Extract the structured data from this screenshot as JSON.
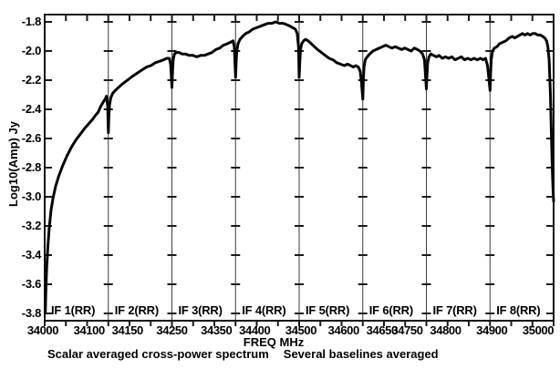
{
  "figure": {
    "background": "#ffffff",
    "frame_color": "#111111",
    "divider_color": "#3d3d3d",
    "tick_color": "#1a1a1a",
    "curve_color": "#050505"
  },
  "y_axis": {
    "title": "Log10(Amp) Jy",
    "tick_values": [
      -1.8,
      -2.0,
      -2.2,
      -2.4,
      -2.6,
      -2.8,
      -3.0,
      -3.2,
      -3.4,
      -3.6,
      -3.8
    ]
  },
  "x_axis": {
    "title": "FREQ MHz",
    "labels": [
      {
        "text": "34000",
        "edge": 0,
        "dx": -2
      },
      {
        "text": "34100",
        "edge": 1,
        "dx": -21
      },
      {
        "text": "34150",
        "edge": 1,
        "dx": 21
      },
      {
        "text": "34250",
        "edge": 2,
        "dx": 0
      },
      {
        "text": "34350",
        "edge": 3,
        "dx": -21
      },
      {
        "text": "34400",
        "edge": 3,
        "dx": 21
      },
      {
        "text": "34500",
        "edge": 4,
        "dx": 2
      },
      {
        "text": "34600",
        "edge": 5,
        "dx": -21
      },
      {
        "text": "34650",
        "edge": 5,
        "dx": 21
      },
      {
        "text": "34750",
        "edge": 6,
        "dx": -21
      },
      {
        "text": "34800",
        "edge": 6,
        "dx": 21
      },
      {
        "text": "34900",
        "edge": 7,
        "dx": 2
      },
      {
        "text": "35000",
        "edge": 8,
        "dx": -17
      }
    ]
  },
  "footer": {
    "left": "Scalar averaged cross-power spectrum",
    "right": "Several baselines averaged"
  },
  "chart_data": {
    "type": "line",
    "title": "Scalar averaged cross-power spectrum — Several baselines averaged",
    "xlabel": "FREQ MHz",
    "ylabel": "Log10(Amp) Jy",
    "ylim": [
      -3.85,
      -1.75
    ],
    "grid": false,
    "legend": "none",
    "description": "Cross-power spectrum amplitude vs frequency over 8 contiguous IF panels; sharp absorption-like dips at IF band edges.",
    "if_bands": [
      {
        "label": "IF 1(RR)",
        "f_start": 34000,
        "f_end": 34100,
        "points": [
          [
            34001,
            -3.79
          ],
          [
            34002,
            -3.62
          ],
          [
            34003,
            -3.5
          ],
          [
            34005,
            -3.34
          ],
          [
            34007,
            -3.22
          ],
          [
            34010,
            -3.09
          ],
          [
            34013,
            -3.01
          ],
          [
            34017,
            -2.93
          ],
          [
            34022,
            -2.86
          ],
          [
            34028,
            -2.79
          ],
          [
            34035,
            -2.72
          ],
          [
            34042,
            -2.66
          ],
          [
            34049,
            -2.61
          ],
          [
            34056,
            -2.57
          ],
          [
            34063,
            -2.53
          ],
          [
            34069,
            -2.5
          ],
          [
            34075,
            -2.47
          ],
          [
            34080,
            -2.44
          ],
          [
            34084,
            -2.42
          ],
          [
            34088,
            -2.38
          ],
          [
            34092,
            -2.35
          ],
          [
            34095,
            -2.33
          ],
          [
            34097,
            -2.31
          ],
          [
            34099,
            -2.38
          ],
          [
            34100,
            -2.56
          ]
        ]
      },
      {
        "label": "IF 2(RR)",
        "f_start": 34150,
        "f_end": 34250,
        "points": [
          [
            34151,
            -2.44
          ],
          [
            34152,
            -2.37
          ],
          [
            34154,
            -2.32
          ],
          [
            34157,
            -2.29
          ],
          [
            34161,
            -2.27
          ],
          [
            34166,
            -2.25
          ],
          [
            34171,
            -2.23
          ],
          [
            34177,
            -2.21
          ],
          [
            34183,
            -2.19
          ],
          [
            34189,
            -2.17
          ],
          [
            34196,
            -2.15
          ],
          [
            34203,
            -2.13
          ],
          [
            34210,
            -2.11
          ],
          [
            34217,
            -2.1
          ],
          [
            34224,
            -2.08
          ],
          [
            34231,
            -2.07
          ],
          [
            34237,
            -2.06
          ],
          [
            34242,
            -2.05
          ],
          [
            34246,
            -2.05
          ],
          [
            34248,
            -2.09
          ],
          [
            34250,
            -2.25
          ]
        ]
      },
      {
        "label": "IF 3(RR)",
        "f_start": 34250,
        "f_end": 34350,
        "points": [
          [
            34251,
            -2.14
          ],
          [
            34252,
            -2.06
          ],
          [
            34254,
            -2.02
          ],
          [
            34257,
            -2.01
          ],
          [
            34261,
            -2.01
          ],
          [
            34266,
            -2.02
          ],
          [
            34271,
            -2.02
          ],
          [
            34277,
            -2.03
          ],
          [
            34283,
            -2.03
          ],
          [
            34289,
            -2.04
          ],
          [
            34295,
            -2.03
          ],
          [
            34301,
            -2.03
          ],
          [
            34307,
            -2.02
          ],
          [
            34313,
            -2.01
          ],
          [
            34319,
            -1.99
          ],
          [
            34325,
            -1.98
          ],
          [
            34331,
            -1.96
          ],
          [
            34337,
            -1.95
          ],
          [
            34342,
            -1.94
          ],
          [
            34346,
            -1.93
          ],
          [
            34348,
            -1.97
          ],
          [
            34350,
            -2.18
          ]
        ]
      },
      {
        "label": "IF 4(RR)",
        "f_start": 34400,
        "f_end": 34500,
        "points": [
          [
            34401,
            -2.08
          ],
          [
            34402,
            -2.0
          ],
          [
            34404,
            -1.95
          ],
          [
            34407,
            -1.92
          ],
          [
            34411,
            -1.9
          ],
          [
            34416,
            -1.88
          ],
          [
            34421,
            -1.87
          ],
          [
            34427,
            -1.85
          ],
          [
            34433,
            -1.84
          ],
          [
            34439,
            -1.83
          ],
          [
            34445,
            -1.82
          ],
          [
            34451,
            -1.81
          ],
          [
            34457,
            -1.81
          ],
          [
            34463,
            -1.8
          ],
          [
            34469,
            -1.81
          ],
          [
            34475,
            -1.81
          ],
          [
            34481,
            -1.82
          ],
          [
            34486,
            -1.83
          ],
          [
            34490,
            -1.84
          ],
          [
            34494,
            -1.85
          ],
          [
            34497,
            -1.88
          ],
          [
            34499,
            -1.97
          ],
          [
            34500,
            -2.18
          ]
        ]
      },
      {
        "label": "IF 5(RR)",
        "f_start": 34500,
        "f_end": 34600,
        "points": [
          [
            34501,
            -2.08
          ],
          [
            34502,
            -1.99
          ],
          [
            34504,
            -1.95
          ],
          [
            34507,
            -1.93
          ],
          [
            34510,
            -1.92
          ],
          [
            34514,
            -1.93
          ],
          [
            34519,
            -1.95
          ],
          [
            34524,
            -1.97
          ],
          [
            34529,
            -1.99
          ],
          [
            34535,
            -2.01
          ],
          [
            34541,
            -2.03
          ],
          [
            34547,
            -2.05
          ],
          [
            34553,
            -2.06
          ],
          [
            34559,
            -2.08
          ],
          [
            34565,
            -2.09
          ],
          [
            34571,
            -2.1
          ],
          [
            34576,
            -2.09
          ],
          [
            34581,
            -2.1
          ],
          [
            34585,
            -2.11
          ],
          [
            34589,
            -2.1
          ],
          [
            34593,
            -2.11
          ],
          [
            34596,
            -2.14
          ],
          [
            34598,
            -2.22
          ],
          [
            34600,
            -2.33
          ]
        ]
      },
      {
        "label": "IF 6(RR)",
        "f_start": 34650,
        "f_end": 34750,
        "points": [
          [
            34651,
            -2.2
          ],
          [
            34652,
            -2.11
          ],
          [
            34654,
            -2.06
          ],
          [
            34657,
            -2.04
          ],
          [
            34661,
            -2.02
          ],
          [
            34666,
            -2.0
          ],
          [
            34671,
            -1.99
          ],
          [
            34676,
            -1.98
          ],
          [
            34681,
            -1.97
          ],
          [
            34686,
            -1.96
          ],
          [
            34691,
            -1.97
          ],
          [
            34696,
            -1.98
          ],
          [
            34701,
            -1.97
          ],
          [
            34706,
            -1.98
          ],
          [
            34711,
            -1.99
          ],
          [
            34716,
            -1.98
          ],
          [
            34721,
            -1.99
          ],
          [
            34726,
            -2.0
          ],
          [
            34731,
            -1.98
          ],
          [
            34736,
            -1.99
          ],
          [
            34740,
            -2.0
          ],
          [
            34744,
            -2.02
          ],
          [
            34747,
            -2.06
          ],
          [
            34750,
            -2.26
          ]
        ]
      },
      {
        "label": "IF 7(RR)",
        "f_start": 34800,
        "f_end": 34900,
        "points": [
          [
            34801,
            -2.16
          ],
          [
            34802,
            -2.08
          ],
          [
            34804,
            -2.04
          ],
          [
            34807,
            -2.02
          ],
          [
            34811,
            -2.03
          ],
          [
            34816,
            -2.04
          ],
          [
            34820,
            -2.03
          ],
          [
            34825,
            -2.05
          ],
          [
            34830,
            -2.04
          ],
          [
            34835,
            -2.05
          ],
          [
            34840,
            -2.04
          ],
          [
            34845,
            -2.06
          ],
          [
            34850,
            -2.05
          ],
          [
            34855,
            -2.04
          ],
          [
            34860,
            -2.06
          ],
          [
            34865,
            -2.05
          ],
          [
            34870,
            -2.06
          ],
          [
            34875,
            -2.05
          ],
          [
            34880,
            -2.06
          ],
          [
            34885,
            -2.05
          ],
          [
            34889,
            -2.06
          ],
          [
            34893,
            -2.05
          ],
          [
            34896,
            -2.1
          ],
          [
            34898,
            -2.18
          ],
          [
            34900,
            -2.27
          ]
        ]
      },
      {
        "label": "IF 8(RR)",
        "f_start": 34900,
        "f_end": 35000,
        "points": [
          [
            34901,
            -2.16
          ],
          [
            34902,
            -2.06
          ],
          [
            34904,
            -2.0
          ],
          [
            34907,
            -1.98
          ],
          [
            34911,
            -1.97
          ],
          [
            34915,
            -1.95
          ],
          [
            34920,
            -1.94
          ],
          [
            34925,
            -1.93
          ],
          [
            34930,
            -1.91
          ],
          [
            34935,
            -1.9
          ],
          [
            34939,
            -1.91
          ],
          [
            34943,
            -1.9
          ],
          [
            34947,
            -1.89
          ],
          [
            34951,
            -1.88
          ],
          [
            34955,
            -1.89
          ],
          [
            34959,
            -1.88
          ],
          [
            34963,
            -1.89
          ],
          [
            34967,
            -1.88
          ],
          [
            34971,
            -1.88
          ],
          [
            34975,
            -1.89
          ],
          [
            34979,
            -1.89
          ],
          [
            34983,
            -1.9
          ],
          [
            34986,
            -1.91
          ],
          [
            34989,
            -1.93
          ],
          [
            34991,
            -1.97
          ],
          [
            34993,
            -2.06
          ],
          [
            34995,
            -2.3
          ],
          [
            34996,
            -2.48
          ],
          [
            34997,
            -2.65
          ],
          [
            34998,
            -2.82
          ],
          [
            34999,
            -2.94
          ],
          [
            35000,
            -3.03
          ]
        ]
      }
    ]
  }
}
